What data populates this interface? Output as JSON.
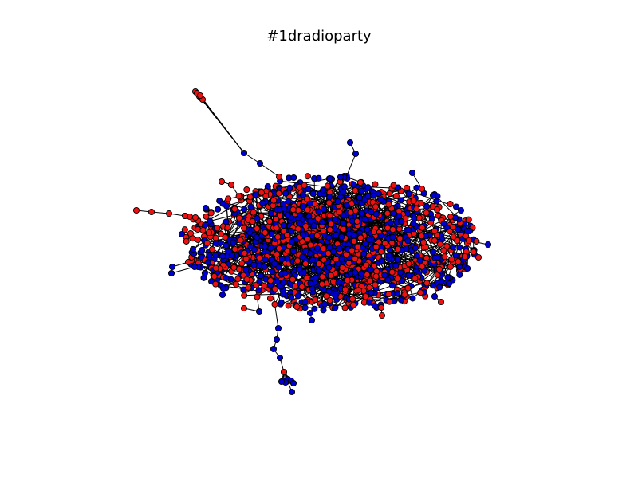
{
  "figure": {
    "title": "#1dradioparty"
  },
  "graph": {
    "edge_color": "#000000",
    "node_outline_color": "#000000",
    "node_colors": {
      "red": "#ee1111",
      "blue": "#0000cc"
    }
  }
}
